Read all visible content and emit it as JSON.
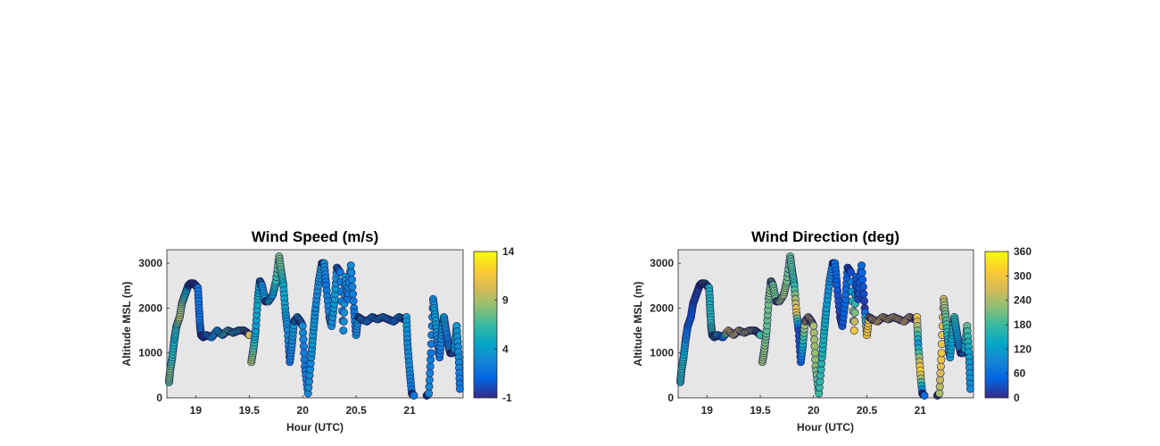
{
  "chart_data": [
    {
      "type": "scatter",
      "title": "Wind Speed (m/s)",
      "xlabel": "Hour (UTC)",
      "ylabel": "Altitude MSL (m)",
      "xlim": [
        18.73,
        21.5
      ],
      "ylim": [
        0,
        3300
      ],
      "xticks": [
        19,
        19.5,
        20,
        20.5,
        21
      ],
      "yticks": [
        0,
        1000,
        2000,
        3000
      ],
      "grid": false,
      "background": "#e6e6e6",
      "colormap": "parula",
      "colorbar": {
        "ticks": [
          -1,
          4,
          9,
          14
        ],
        "range": [
          -1,
          14
        ]
      },
      "series": [
        {
          "x": [
            18.75,
            18.76,
            18.78,
            18.8,
            18.82,
            18.85,
            18.87,
            18.9,
            18.93,
            18.95,
            18.98,
            19.0,
            19.02,
            19.03,
            19.04,
            19.05,
            19.07,
            19.1,
            19.15,
            19.2,
            19.25,
            19.3,
            19.35,
            19.4,
            19.45,
            19.48,
            19.5
          ],
          "y": [
            350,
            600,
            900,
            1300,
            1600,
            1800,
            2100,
            2300,
            2500,
            2550,
            2550,
            2500,
            2450,
            2000,
            1600,
            1400,
            1350,
            1400,
            1350,
            1500,
            1400,
            1500,
            1450,
            1500,
            1500,
            1450,
            1400
          ],
          "c": [
            7,
            8,
            6,
            5,
            6,
            9,
            8,
            6,
            4,
            4,
            3,
            3,
            2,
            2,
            2,
            2,
            2,
            2,
            3,
            4,
            5,
            7,
            6,
            5,
            7,
            8,
            10
          ]
        },
        {
          "x": [
            19.52,
            19.54,
            19.56,
            19.58,
            19.6,
            19.62,
            19.65,
            19.68,
            19.72,
            19.75,
            19.78,
            19.8,
            19.82,
            19.84,
            19.86,
            19.88,
            19.9,
            19.92,
            19.95,
            19.98,
            20.0,
            20.02,
            20.05,
            20.08,
            20.1,
            20.12,
            20.15,
            20.18,
            20.2,
            20.22,
            20.25,
            20.27,
            20.3,
            20.32,
            20.35,
            20.38,
            20.4,
            20.42,
            20.45,
            20.48,
            20.5,
            20.52,
            20.55,
            20.6,
            20.65,
            20.7,
            20.75,
            20.8,
            20.85,
            20.9,
            20.95,
            20.97,
            20.98,
            21.0,
            21.02,
            21.04
          ],
          "y": [
            800,
            1100,
            1500,
            2200,
            2600,
            2500,
            2150,
            2150,
            2300,
            2600,
            3150,
            2800,
            2500,
            1900,
            1500,
            800,
            1200,
            1700,
            1800,
            1700,
            1600,
            700,
            100,
            900,
            1500,
            2000,
            2600,
            3000,
            3000,
            2500,
            1800,
            1600,
            2200,
            2900,
            2800,
            1500,
            2700,
            2200,
            2950,
            2000,
            1400,
            1800,
            1750,
            1700,
            1800,
            1750,
            1800,
            1750,
            1700,
            1800,
            1750,
            1800,
            1200,
            600,
            100,
            50
          ],
          "c": [
            9,
            7,
            4,
            5,
            4,
            3,
            4,
            5,
            4,
            6,
            8,
            7,
            5,
            4,
            3,
            2,
            3,
            4,
            5,
            4,
            3,
            2,
            3,
            3,
            4,
            3,
            3,
            4,
            3,
            2,
            3,
            3,
            4,
            3,
            2,
            3,
            4,
            2,
            3,
            2,
            3,
            3,
            4,
            3,
            3,
            3,
            4,
            3,
            2,
            3,
            3,
            4,
            3,
            3,
            2,
            2
          ]
        },
        {
          "x": [
            21.16,
            21.18,
            21.2,
            21.22,
            21.24,
            21.26,
            21.28,
            21.3,
            21.32,
            21.34,
            21.36,
            21.38,
            21.4,
            21.42,
            21.44,
            21.46,
            21.47
          ],
          "y": [
            50,
            100,
            1000,
            2200,
            1800,
            1300,
            900,
            1400,
            1800,
            1500,
            1200,
            1000,
            1000,
            1100,
            1600,
            900,
            200
          ],
          "c": [
            3,
            3,
            2,
            3,
            4,
            3,
            2,
            3,
            4,
            3,
            2,
            3,
            2,
            3,
            4,
            3,
            2
          ]
        }
      ]
    },
    {
      "type": "scatter",
      "title": "Wind Direction (deg)",
      "xlabel": "Hour (UTC)",
      "ylabel": "Altitude MSL (m)",
      "xlim": [
        18.73,
        21.5
      ],
      "ylim": [
        0,
        3300
      ],
      "xticks": [
        19,
        19.5,
        20,
        20.5,
        21
      ],
      "yticks": [
        0,
        1000,
        2000,
        3000
      ],
      "grid": false,
      "background": "#e6e6e6",
      "colormap": "parula",
      "colorbar": {
        "ticks": [
          0,
          60,
          120,
          180,
          240,
          300,
          360
        ],
        "range": [
          0,
          360
        ]
      },
      "series": [
        {
          "x": [
            18.75,
            18.76,
            18.78,
            18.8,
            18.82,
            18.85,
            18.87,
            18.9,
            18.93,
            18.95,
            18.98,
            19.0,
            19.02,
            19.03,
            19.04,
            19.05,
            19.07,
            19.1,
            19.15,
            19.2,
            19.25,
            19.3,
            19.35,
            19.4,
            19.45,
            19.48,
            19.5
          ],
          "y": [
            350,
            600,
            900,
            1300,
            1600,
            1800,
            2100,
            2300,
            2500,
            2550,
            2550,
            2500,
            2450,
            2000,
            1600,
            1400,
            1350,
            1400,
            1350,
            1500,
            1400,
            1500,
            1450,
            1500,
            1500,
            1450,
            1400
          ],
          "c": [
            160,
            170,
            150,
            90,
            60,
            40,
            30,
            20,
            20,
            40,
            300,
            100,
            150,
            160,
            170,
            170,
            180,
            170,
            30,
            300,
            260,
            280,
            240,
            250,
            220,
            200,
            180
          ]
        },
        {
          "x": [
            19.52,
            19.54,
            19.56,
            19.58,
            19.6,
            19.62,
            19.65,
            19.68,
            19.72,
            19.75,
            19.78,
            19.8,
            19.82,
            19.84,
            19.86,
            19.88,
            19.9,
            19.92,
            19.95,
            19.98,
            20.0,
            20.02,
            20.05,
            20.08,
            20.1,
            20.12,
            20.15,
            20.18,
            20.2,
            20.22,
            20.25,
            20.27,
            20.3,
            20.32,
            20.35,
            20.38,
            20.4,
            20.42,
            20.45,
            20.48,
            20.5,
            20.52,
            20.55,
            20.6,
            20.65,
            20.7,
            20.75,
            20.8,
            20.85,
            20.9,
            20.95,
            20.97,
            20.98,
            21.0,
            21.02,
            21.04
          ],
          "y": [
            800,
            1100,
            1500,
            2200,
            2600,
            2500,
            2150,
            2150,
            2300,
            2600,
            3150,
            2800,
            2500,
            1900,
            1500,
            800,
            1200,
            1700,
            1800,
            1700,
            1600,
            700,
            100,
            900,
            1500,
            2000,
            2600,
            3000,
            3000,
            2500,
            1800,
            1600,
            2200,
            2900,
            2800,
            1500,
            2700,
            2200,
            2950,
            2000,
            1400,
            1800,
            1750,
            1700,
            1800,
            1750,
            1800,
            1750,
            1700,
            1800,
            1750,
            1800,
            1200,
            600,
            100,
            50
          ],
          "c": [
            230,
            220,
            200,
            210,
            220,
            200,
            210,
            220,
            230,
            210,
            200,
            190,
            170,
            300,
            20,
            40,
            150,
            250,
            270,
            260,
            240,
            220,
            180,
            160,
            150,
            130,
            100,
            80,
            60,
            40,
            20,
            30,
            60,
            40,
            30,
            300,
            40,
            20,
            60,
            10,
            300,
            290,
            270,
            290,
            280,
            300,
            280,
            290,
            270,
            280,
            290,
            300,
            120,
            330,
            60,
            60
          ]
        },
        {
          "x": [
            21.16,
            21.18,
            21.2,
            21.22,
            21.24,
            21.26,
            21.28,
            21.3,
            21.32,
            21.34,
            21.36,
            21.38,
            21.4,
            21.42,
            21.44,
            21.46,
            21.47
          ],
          "y": [
            50,
            100,
            1000,
            2200,
            1800,
            1300,
            900,
            1400,
            1800,
            1500,
            1200,
            1000,
            1000,
            1100,
            1600,
            900,
            200
          ],
          "c": [
            220,
            240,
            300,
            260,
            200,
            160,
            120,
            140,
            180,
            130,
            110,
            100,
            110,
            130,
            200,
            120,
            100
          ]
        }
      ]
    }
  ]
}
